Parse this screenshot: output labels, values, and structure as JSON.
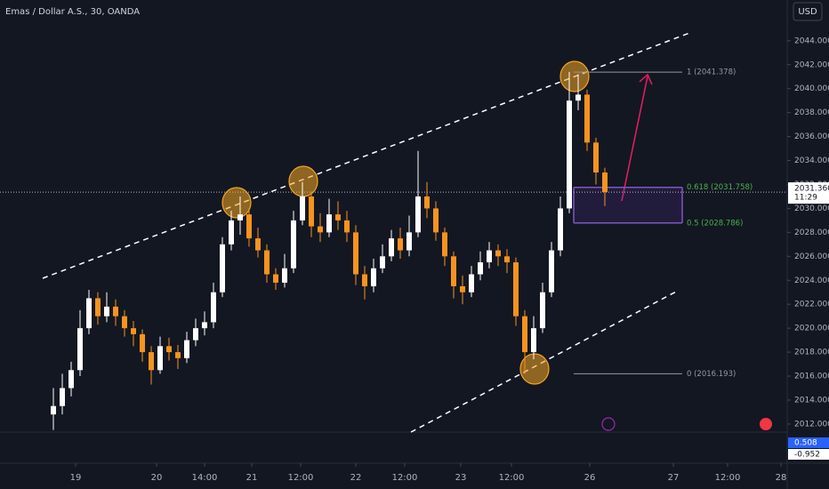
{
  "chart_data": {
    "type": "candlestick",
    "title": "Emas / Dollar A.S., 30, OANDA",
    "currency": "USD",
    "up_color": "#ffffff",
    "down_color": "#f7931e",
    "x": [
      60,
      70,
      80,
      90,
      100,
      110,
      120,
      130,
      140,
      150,
      160,
      170,
      180,
      190,
      200,
      210,
      220,
      230,
      240,
      250,
      260,
      270,
      280,
      290,
      300,
      310,
      320,
      330,
      340,
      350,
      360,
      370,
      380,
      390,
      400,
      410,
      420,
      430,
      440,
      450,
      460,
      470,
      480,
      490,
      500,
      510,
      520,
      530,
      540,
      550,
      560,
      570,
      580,
      590,
      600,
      610,
      620,
      630,
      640,
      650,
      660,
      670,
      680
    ],
    "open": [
      2012.8,
      2013.5,
      2015,
      2016.5,
      2020,
      2022.5,
      2021,
      2021.8,
      2021,
      2020,
      2019.5,
      2018,
      2016.5,
      2018.5,
      2018,
      2017.5,
      2019,
      2020,
      2020.5,
      2023,
      2027,
      2029,
      2029.5,
      2027.5,
      2026.5,
      2024.5,
      2023.8,
      2025,
      2029,
      2031,
      2028.5,
      2028,
      2029.5,
      2029,
      2028,
      2024.5,
      2023.5,
      2025,
      2026,
      2027.5,
      2026.5,
      2028,
      2031,
      2030,
      2028,
      2026,
      2023.5,
      2023,
      2024.5,
      2025.5,
      2026.5,
      2026,
      2025.5,
      2021,
      2018,
      2020,
      2023,
      2026.5,
      2030,
      2039,
      2039.5,
      2035.5,
      2033
    ],
    "high": [
      2015,
      2016.2,
      2017.2,
      2021.5,
      2023.2,
      2023,
      2023,
      2022.4,
      2021.5,
      2020.6,
      2019.9,
      2018.5,
      2019.3,
      2019.2,
      2018.6,
      2019.7,
      2020.8,
      2021.4,
      2023.8,
      2027.6,
      2029.8,
      2031,
      2030,
      2028.4,
      2027,
      2025,
      2026.2,
      2029.8,
      2032.2,
      2031.4,
      2029.6,
      2030.8,
      2030.6,
      2029.8,
      2028.6,
      2025.2,
      2025.8,
      2027,
      2028.2,
      2028.4,
      2029.4,
      2034.8,
      2032.2,
      2030.6,
      2028.4,
      2026.4,
      2024.4,
      2025.2,
      2026.4,
      2027.2,
      2027,
      2026.6,
      2025.9,
      2021.5,
      2021,
      2023.8,
      2027.2,
      2031,
      2041.4,
      2041.2,
      2039.9,
      2035.9,
      2033.4
    ],
    "low": [
      2011.5,
      2012.8,
      2014.3,
      2016,
      2019.5,
      2020.3,
      2020.5,
      2020.2,
      2019.3,
      2018.5,
      2017.2,
      2015.3,
      2016.2,
      2017.3,
      2016.6,
      2017.1,
      2018.5,
      2019.4,
      2020,
      2022.6,
      2026.5,
      2027.8,
      2026.8,
      2025.9,
      2023.8,
      2023.2,
      2023.4,
      2024.6,
      2028.6,
      2027.6,
      2027.2,
      2027.6,
      2028.2,
      2027.2,
      2023.6,
      2022.4,
      2023,
      2024.6,
      2025.6,
      2025.8,
      2026,
      2027.6,
      2029.2,
      2027.3,
      2025.2,
      2022.5,
      2022,
      2022.6,
      2024,
      2025,
      2025.2,
      2024.6,
      2020.2,
      2016.2,
      2017.4,
      2019.6,
      2022.6,
      2026,
      2029.6,
      2038.2,
      2034.8,
      2032,
      2030.2
    ],
    "close": [
      2013.5,
      2015,
      2016.5,
      2020,
      2022.5,
      2021,
      2021.8,
      2021,
      2020,
      2019.5,
      2018,
      2016.5,
      2018.5,
      2018,
      2017.5,
      2019,
      2020,
      2020.5,
      2023,
      2027,
      2029,
      2029.5,
      2027.5,
      2026.5,
      2024.5,
      2023.8,
      2025,
      2029,
      2031,
      2028.5,
      2028,
      2029.5,
      2029,
      2028,
      2024.5,
      2023.5,
      2025,
      2026,
      2027.5,
      2026.5,
      2028,
      2031,
      2030,
      2028,
      2026,
      2023.5,
      2023,
      2024.5,
      2025.5,
      2026.5,
      2026,
      2025.5,
      2021,
      2018,
      2020,
      2023,
      2026.5,
      2030,
      2039,
      2039.5,
      2035.5,
      2033,
      2031.36
    ],
    "xlim": [
      0,
      885
    ],
    "ylim": [
      2011.4,
      2047.4
    ],
    "yticks": [
      {
        "value": 2012,
        "label": "2012.000"
      },
      {
        "value": 2014,
        "label": "2014.000"
      },
      {
        "value": 2016,
        "label": "2016.000"
      },
      {
        "value": 2018,
        "label": "2018.000"
      },
      {
        "value": 2020,
        "label": "2020.000"
      },
      {
        "value": 2022,
        "label": "2022.000"
      },
      {
        "value": 2024,
        "label": "2024.000"
      },
      {
        "value": 2026,
        "label": "2026.000"
      },
      {
        "value": 2028,
        "label": "2028.000"
      },
      {
        "value": 2030,
        "label": "2030.000"
      },
      {
        "value": 2032,
        "label": "2032.000"
      },
      {
        "value": 2034,
        "label": "2034.000"
      },
      {
        "value": 2036,
        "label": "2036.000"
      },
      {
        "value": 2038,
        "label": "2038.000"
      },
      {
        "value": 2040,
        "label": "2040.000"
      },
      {
        "value": 2042,
        "label": "2042.000"
      },
      {
        "value": 2044,
        "label": "2044.000"
      }
    ],
    "xticks": [
      {
        "value": 85,
        "label": "19"
      },
      {
        "value": 176,
        "label": "20"
      },
      {
        "value": 230,
        "label": "14:00"
      },
      {
        "value": 283,
        "label": "21"
      },
      {
        "value": 338,
        "label": "12:00"
      },
      {
        "value": 400,
        "label": "22"
      },
      {
        "value": 455,
        "label": "12:00"
      },
      {
        "value": 518,
        "label": "23"
      },
      {
        "value": 575,
        "label": "12:00"
      },
      {
        "value": 663,
        "label": "26"
      },
      {
        "value": 757,
        "label": "27"
      },
      {
        "value": 818,
        "label": "12:00"
      },
      {
        "value": 878,
        "label": "28"
      }
    ],
    "fib_levels": [
      {
        "value": 2041.378,
        "label": "1 (2041.378)",
        "color": "#9598a1"
      },
      {
        "value": 2031.758,
        "label": "0.618 (2031.758)",
        "color": "#4caf50"
      },
      {
        "value": 2028.786,
        "label": "0.5 (2028.786)",
        "color": "#4caf50"
      },
      {
        "value": 2016.193,
        "label": "0 (2016.193)",
        "color": "#9598a1"
      }
    ],
    "last_price": {
      "value": 2031.36,
      "label": "2031.360",
      "countdown": "11:29"
    },
    "macd_labels": [
      "0.508",
      "-0.952"
    ]
  }
}
